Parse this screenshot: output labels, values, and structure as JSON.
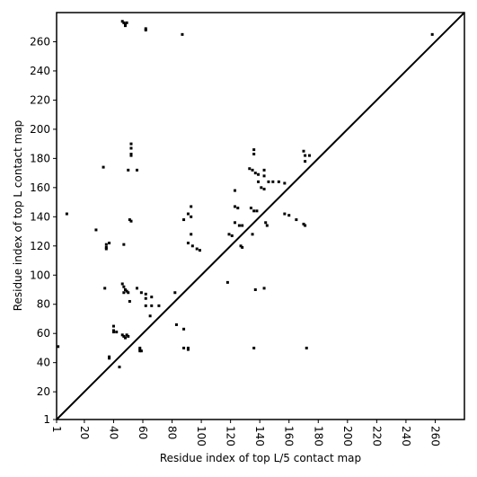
{
  "chart_data": {
    "type": "scatter",
    "xlabel": "Residue index of top L/5 contact map",
    "ylabel": "Residue index of top L contact map",
    "color": "#000000",
    "xlim": [
      1,
      280
    ],
    "ylim": [
      1,
      280
    ],
    "xticks": [
      1,
      20,
      40,
      60,
      80,
      100,
      120,
      140,
      160,
      180,
      200,
      220,
      240,
      260
    ],
    "yticks": [
      1,
      20,
      40,
      60,
      80,
      100,
      120,
      140,
      160,
      180,
      200,
      220,
      240,
      260
    ],
    "x": [
      46,
      47,
      48,
      49,
      48,
      62,
      62,
      87,
      258,
      2,
      8,
      28,
      33,
      35,
      35,
      35,
      37,
      47,
      51,
      52,
      52,
      52,
      52,
      52,
      56,
      50,
      34,
      46,
      47,
      48,
      49,
      50,
      47,
      51,
      56,
      59,
      62,
      62,
      62,
      66,
      66,
      65,
      71,
      82,
      83,
      88,
      88,
      91,
      91,
      40,
      40,
      40,
      42,
      37,
      37,
      44,
      46,
      47,
      48,
      49,
      50,
      48,
      58,
      58,
      58,
      59,
      88,
      91,
      93,
      93,
      91,
      94,
      97,
      99,
      93,
      119,
      121,
      123,
      123,
      125,
      123,
      126,
      128,
      127,
      128,
      118,
      133,
      135,
      137,
      139,
      139,
      141,
      143,
      136,
      136,
      143,
      143,
      146,
      149,
      153,
      157,
      134,
      136,
      138,
      135,
      137,
      143,
      144,
      145,
      157,
      160,
      165,
      170,
      171,
      170,
      171,
      174,
      171,
      136,
      172
    ],
    "values": [
      274,
      273,
      272,
      273,
      271,
      268,
      269,
      265,
      265,
      51,
      142,
      131,
      174,
      121,
      119,
      118,
      122,
      121,
      138,
      137,
      190,
      187,
      183,
      182,
      172,
      172,
      91,
      94,
      92,
      90,
      89,
      88,
      88,
      82,
      91,
      88,
      87,
      84,
      79,
      85,
      79,
      72,
      79,
      88,
      66,
      63,
      50,
      49,
      50,
      65,
      62,
      61,
      61,
      43,
      44,
      37,
      59,
      58,
      57,
      59,
      58,
      57,
      50,
      49,
      48,
      48,
      138,
      142,
      147,
      128,
      122,
      120,
      118,
      117,
      140,
      128,
      127,
      158,
      147,
      146,
      136,
      134,
      134,
      120,
      119,
      95,
      173,
      172,
      170,
      169,
      164,
      160,
      159,
      186,
      183,
      172,
      168,
      164,
      164,
      164,
      163,
      146,
      144,
      144,
      128,
      90,
      91,
      136,
      134,
      142,
      141,
      138,
      135,
      134,
      185,
      182,
      182,
      178,
      50,
      50
    ]
  }
}
